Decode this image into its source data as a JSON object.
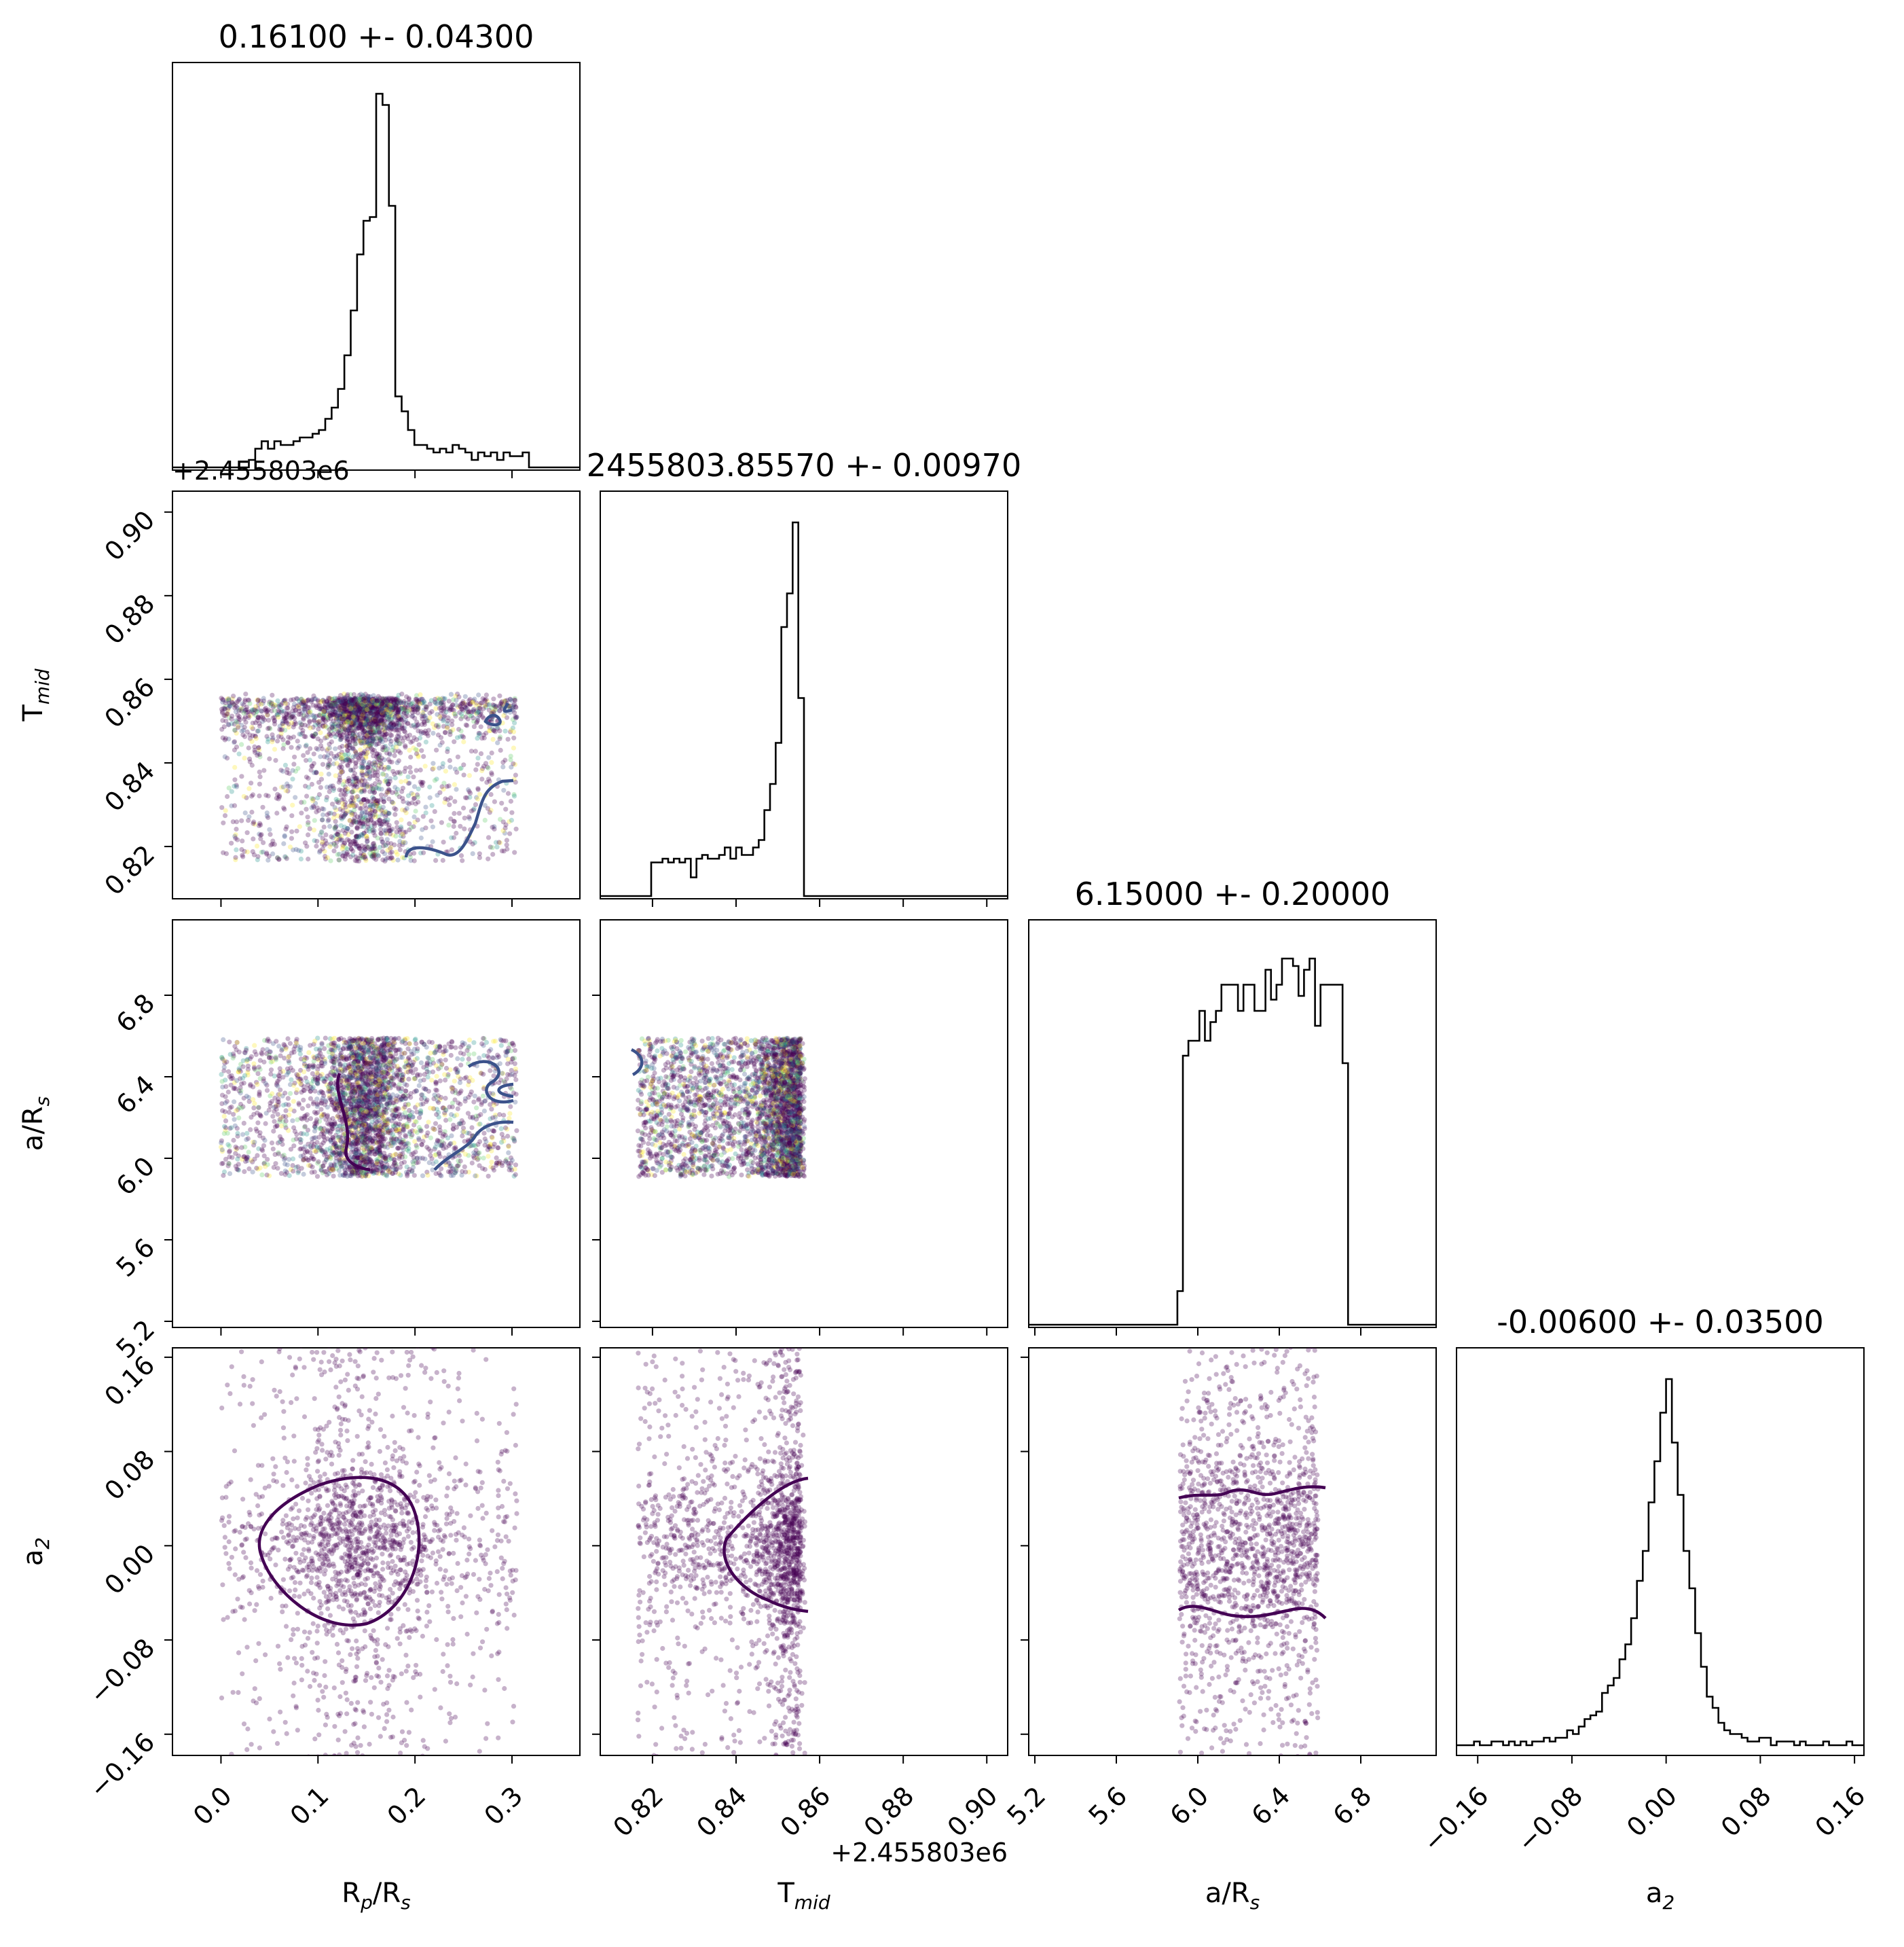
{
  "figure": {
    "type": "corner-plot",
    "offset_label": "+2.455803e6"
  },
  "chart_data": {
    "type": "corner",
    "parameters": [
      {
        "key": "rp",
        "label_main": "R",
        "label_sub1": "p",
        "label_mid": "/R",
        "label_sub2": "s",
        "title": "0.16100 +- 0.04300",
        "range": [
          -0.05,
          0.37
        ],
        "ticks": [
          0.0,
          0.1,
          0.2,
          0.3
        ],
        "tick_labels": [
          "0.0",
          "0.1",
          "0.2",
          "0.3"
        ]
      },
      {
        "key": "tmid",
        "label_main": "T",
        "label_sub1": "mid",
        "label_mid": "",
        "label_sub2": "",
        "title": "2455803.85570 +- 0.00970",
        "range": [
          0.8075,
          0.905
        ],
        "ticks": [
          0.82,
          0.84,
          0.86,
          0.88,
          0.9
        ],
        "tick_labels": [
          "0.82",
          "0.84",
          "0.86",
          "0.88",
          "0.90"
        ],
        "offset": "+2.455803e6"
      },
      {
        "key": "ars",
        "label_main": "a/R",
        "label_sub1": "s",
        "label_mid": "",
        "label_sub2": "",
        "title": "6.15000 +- 0.20000",
        "range": [
          5.17,
          7.17
        ],
        "ticks": [
          5.2,
          5.6,
          6.0,
          6.4,
          6.8
        ],
        "tick_labels": [
          "5.2",
          "5.6",
          "6.0",
          "6.4",
          "6.8"
        ]
      },
      {
        "key": "a2",
        "label_main": "a",
        "label_sub1": "2",
        "label_mid": "",
        "label_sub2": "",
        "title": "-0.00600 +- 0.03500",
        "range": [
          -0.178,
          0.168
        ],
        "ticks": [
          -0.16,
          -0.08,
          0.0,
          0.08,
          0.16
        ],
        "tick_labels": [
          "−0.16",
          "−0.08",
          "0.00",
          "0.08",
          "0.16"
        ]
      }
    ],
    "histograms": [
      {
        "param": "rp",
        "bin_edges_range": [
          -0.05,
          0.37
        ],
        "counts": [
          0,
          0,
          0,
          0,
          0,
          0,
          0,
          0,
          0,
          0,
          0,
          0,
          2,
          5,
          7,
          5,
          7,
          6,
          6,
          7,
          8,
          8,
          9,
          10,
          13,
          16,
          21,
          30,
          42,
          57,
          66,
          67,
          100,
          97,
          70,
          19,
          15,
          10,
          6,
          6,
          5,
          4,
          5,
          4,
          6,
          5,
          4,
          2,
          4,
          3,
          4,
          2,
          4,
          3,
          3,
          4,
          0,
          0,
          0,
          0,
          0,
          0,
          0,
          0
        ]
      },
      {
        "param": "tmid",
        "bin_edges_range": [
          0.8075,
          0.905
        ],
        "counts": [
          0,
          0,
          0,
          0,
          0,
          0,
          0,
          0,
          0,
          9,
          9,
          10,
          9,
          10,
          9,
          10,
          5,
          10,
          11,
          10,
          10,
          11,
          13,
          10,
          13,
          11,
          11,
          13,
          15,
          23,
          30,
          41,
          72,
          81,
          100,
          53,
          0,
          0,
          0,
          0,
          0,
          0,
          0,
          0,
          0,
          0,
          0,
          0,
          0,
          0,
          0,
          0,
          0,
          0,
          0,
          0,
          0,
          0,
          0,
          0,
          0,
          0,
          0,
          0,
          0,
          0,
          0,
          0,
          0,
          0,
          0,
          0
        ]
      },
      {
        "param": "ars",
        "bin_edges_range": [
          5.17,
          7.17
        ],
        "counts": [
          0,
          0,
          0,
          0,
          0,
          0,
          0,
          0,
          0,
          0,
          0,
          0,
          0,
          0,
          0,
          0,
          0,
          0,
          0,
          0,
          0,
          0,
          0,
          0,
          0,
          0,
          0,
          9,
          72,
          76,
          76,
          84,
          76,
          81,
          84,
          91,
          91,
          91,
          84,
          91,
          91,
          84,
          84,
          95,
          87,
          91,
          98,
          98,
          96,
          88,
          95,
          98,
          80,
          91,
          91,
          91,
          91,
          70,
          0,
          0,
          0,
          0,
          0,
          0,
          0,
          0,
          0,
          0,
          0,
          0,
          0,
          0,
          0,
          0
        ]
      },
      {
        "param": "a2",
        "bin_edges_range": [
          -0.178,
          0.168
        ],
        "counts": [
          2,
          2,
          2,
          3,
          2,
          2,
          3,
          3,
          2,
          3,
          2,
          3,
          2,
          3,
          3,
          4,
          3,
          4,
          4,
          6,
          5,
          7,
          9,
          10,
          11,
          16,
          18,
          20,
          25,
          29,
          36,
          46,
          54,
          67,
          78,
          91,
          100,
          83,
          69,
          54,
          44,
          32,
          23,
          15,
          12,
          8,
          6,
          5,
          5,
          4,
          3,
          3,
          4,
          4,
          2,
          3,
          3,
          3,
          2,
          3,
          2,
          2,
          2,
          3,
          2,
          2,
          2,
          3,
          2,
          2
        ]
      }
    ],
    "scatter": [
      {
        "x": "rp",
        "y": "tmid"
      },
      {
        "x": "rp",
        "y": "ars"
      },
      {
        "x": "tmid",
        "y": "ars"
      },
      {
        "x": "rp",
        "y": "a2"
      },
      {
        "x": "tmid",
        "y": "a2"
      },
      {
        "x": "ars",
        "y": "a2"
      }
    ],
    "contours": [
      {
        "x": "rp",
        "y": "tmid",
        "color": "#3b528b"
      },
      {
        "x": "rp",
        "y": "ars",
        "color": "#3b528b"
      },
      {
        "x": "tmid",
        "y": "ars",
        "color": "#3b528b"
      },
      {
        "x": "rp",
        "y": "a2",
        "color": "#440154"
      },
      {
        "x": "tmid",
        "y": "a2",
        "color": "#440154"
      },
      {
        "x": "ars",
        "y": "a2",
        "color": "#440154"
      }
    ],
    "colors": {
      "hist": "#000000",
      "point": "#440154",
      "point_palette": [
        "#440154",
        "#3b528b",
        "#21918c",
        "#5ec962",
        "#fde725"
      ],
      "contour_blue": "#3b528b",
      "contour_purple": "#440154"
    },
    "grid": false,
    "legend": "none"
  }
}
